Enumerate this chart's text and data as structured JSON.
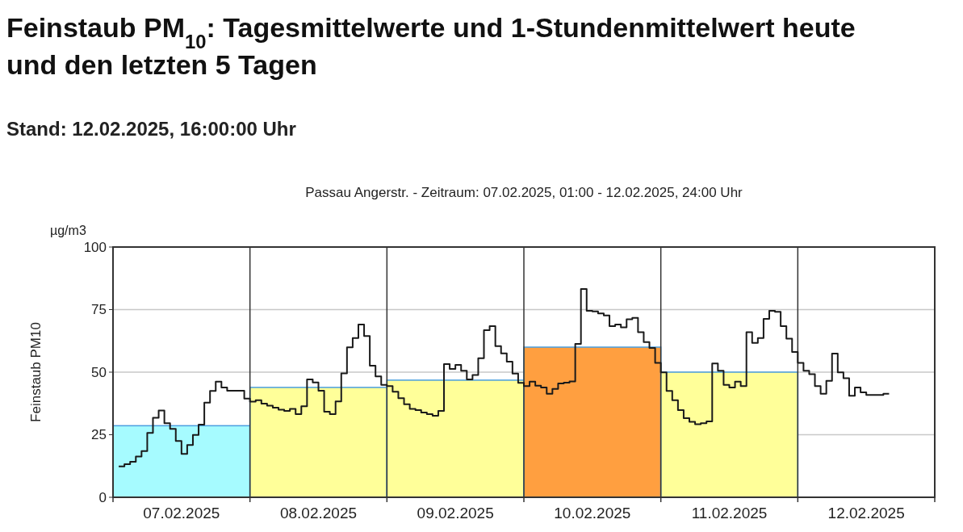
{
  "chart_data": {
    "type": "step",
    "title": "Feinstaub PM$_{10}$: Tagesmittelwerte und 1-Stundenmittelwert heute und den letzten 5 Tagen",
    "subtitle": "Stand: 12.02.2025, 16:00:00 Uhr",
    "annotations": [
      "Passau Angerstr. - Zeitraum: 07.02.2025, 01:00 - 12.02.2025, 24:00 Uhr",
      "µg/m3"
    ],
    "ylabel": "Feinstaub PM10",
    "xlim": [
      "2025-02-07T00:00",
      "2025-02-13T00:00"
    ],
    "ylim": [
      0,
      100
    ],
    "xticks": [
      {
        "value": "2025-02-07T00:00",
        "label": null
      },
      {
        "value": "2025-02-07T12:00",
        "label": "07.02.2025"
      },
      {
        "value": "2025-02-08T00:00",
        "label": null
      },
      {
        "value": "2025-02-08T12:00",
        "label": "08.02.2025"
      },
      {
        "value": "2025-02-09T00:00",
        "label": null
      },
      {
        "value": "2025-02-09T12:00",
        "label": "09.02.2025"
      },
      {
        "value": "2025-02-10T00:00",
        "label": null
      },
      {
        "value": "2025-02-10T12:00",
        "label": "10.02.2025"
      },
      {
        "value": "2025-02-11T00:00",
        "label": null
      },
      {
        "value": "2025-02-11T12:00",
        "label": "11.02.2025"
      },
      {
        "value": "2025-02-12T00:00",
        "label": null
      },
      {
        "value": "2025-02-12T12:00",
        "label": "12.02.2025"
      },
      {
        "value": "2025-02-13T00:00",
        "label": null
      }
    ],
    "yticks": [
      0,
      25,
      50,
      75,
      100
    ],
    "grid": "y",
    "ref_lines": [
      {
        "axis": "x",
        "value": "2025-02-08T00:00",
        "color": "#333333"
      },
      {
        "axis": "x",
        "value": "2025-02-09T00:00",
        "color": "#333333"
      },
      {
        "axis": "x",
        "value": "2025-02-10T00:00",
        "color": "#333333"
      },
      {
        "axis": "x",
        "value": "2025-02-11T00:00",
        "color": "#333333"
      },
      {
        "axis": "x",
        "value": "2025-02-12T00:00",
        "color": "#333333"
      }
    ],
    "series": [
      {
        "type": "bar",
        "x": [
          "2025-02-07T12:00",
          "2025-02-08T12:00",
          "2025-02-09T12:00",
          "2025-02-10T12:00",
          "2025-02-11T12:00"
        ],
        "values": [
          28.6,
          43.9,
          46.8,
          60,
          50
        ],
        "colors": [
          "#a6fbff",
          "#ffff99",
          "#ffff99",
          "#ff9f40",
          "#ffff99"
        ],
        "color": "#4a9ee0"
      },
      {
        "color": "#1a1a1a",
        "x": [
          "2025-02-07T01:00",
          "2025-02-07T02:00",
          "2025-02-07T03:00",
          "2025-02-07T04:00",
          "2025-02-07T05:00",
          "2025-02-07T06:00",
          "2025-02-07T07:00",
          "2025-02-07T08:00",
          "2025-02-07T09:00",
          "2025-02-07T10:00",
          "2025-02-07T11:00",
          "2025-02-07T12:00",
          "2025-02-07T13:00",
          "2025-02-07T14:00",
          "2025-02-07T15:00",
          "2025-02-07T16:00",
          "2025-02-07T17:00",
          "2025-02-07T18:00",
          "2025-02-07T19:00",
          "2025-02-07T20:00",
          "2025-02-07T21:00",
          "2025-02-07T22:00",
          "2025-02-07T23:00",
          "2025-02-08T00:00",
          "2025-02-08T01:00",
          "2025-02-08T02:00",
          "2025-02-08T03:00",
          "2025-02-08T04:00",
          "2025-02-08T05:00",
          "2025-02-08T06:00",
          "2025-02-08T07:00",
          "2025-02-08T08:00",
          "2025-02-08T09:00",
          "2025-02-08T10:00",
          "2025-02-08T11:00",
          "2025-02-08T12:00",
          "2025-02-08T13:00",
          "2025-02-08T14:00",
          "2025-02-08T15:00",
          "2025-02-08T16:00",
          "2025-02-08T17:00",
          "2025-02-08T18:00",
          "2025-02-08T19:00",
          "2025-02-08T20:00",
          "2025-02-08T21:00",
          "2025-02-08T22:00",
          "2025-02-08T23:00",
          "2025-02-09T00:00",
          "2025-02-09T01:00",
          "2025-02-09T02:00",
          "2025-02-09T03:00",
          "2025-02-09T04:00",
          "2025-02-09T05:00",
          "2025-02-09T06:00",
          "2025-02-09T07:00",
          "2025-02-09T08:00",
          "2025-02-09T09:00",
          "2025-02-09T10:00",
          "2025-02-09T11:00",
          "2025-02-09T12:00",
          "2025-02-09T13:00",
          "2025-02-09T14:00",
          "2025-02-09T15:00",
          "2025-02-09T16:00",
          "2025-02-09T17:00",
          "2025-02-09T18:00",
          "2025-02-09T19:00",
          "2025-02-09T20:00",
          "2025-02-09T21:00",
          "2025-02-09T22:00",
          "2025-02-09T23:00",
          "2025-02-10T00:00",
          "2025-02-10T01:00",
          "2025-02-10T02:00",
          "2025-02-10T03:00",
          "2025-02-10T04:00",
          "2025-02-10T05:00",
          "2025-02-10T06:00",
          "2025-02-10T07:00",
          "2025-02-10T08:00",
          "2025-02-10T09:00",
          "2025-02-10T10:00",
          "2025-02-10T11:00",
          "2025-02-10T12:00",
          "2025-02-10T13:00",
          "2025-02-10T14:00",
          "2025-02-10T15:00",
          "2025-02-10T16:00",
          "2025-02-10T17:00",
          "2025-02-10T18:00",
          "2025-02-10T19:00",
          "2025-02-10T20:00",
          "2025-02-10T21:00",
          "2025-02-10T22:00",
          "2025-02-10T23:00",
          "2025-02-11T00:00",
          "2025-02-11T01:00",
          "2025-02-11T02:00",
          "2025-02-11T03:00",
          "2025-02-11T04:00",
          "2025-02-11T05:00",
          "2025-02-11T06:00",
          "2025-02-11T07:00",
          "2025-02-11T08:00",
          "2025-02-11T09:00",
          "2025-02-11T10:00",
          "2025-02-11T11:00",
          "2025-02-11T12:00",
          "2025-02-11T13:00",
          "2025-02-11T14:00",
          "2025-02-11T15:00",
          "2025-02-11T16:00",
          "2025-02-11T17:00",
          "2025-02-11T18:00",
          "2025-02-11T19:00",
          "2025-02-11T20:00",
          "2025-02-11T21:00",
          "2025-02-11T22:00",
          "2025-02-11T23:00",
          "2025-02-12T00:00",
          "2025-02-12T01:00",
          "2025-02-12T02:00",
          "2025-02-12T03:00",
          "2025-02-12T04:00",
          "2025-02-12T05:00",
          "2025-02-12T06:00",
          "2025-02-12T07:00",
          "2025-02-12T08:00",
          "2025-02-12T09:00",
          "2025-02-12T10:00",
          "2025-02-12T11:00",
          "2025-02-12T12:00",
          "2025-02-12T13:00",
          "2025-02-12T14:00",
          "2025-02-12T15:00",
          "2025-02-12T16:00"
        ],
        "values": [
          12.3,
          12.3,
          13.2,
          14.2,
          16.3,
          18.5,
          25.7,
          31.8,
          34.7,
          29.6,
          27.3,
          22.5,
          17.3,
          20.9,
          24.9,
          29,
          37.8,
          42.5,
          46.2,
          43.9,
          42.6,
          42.6,
          42.6,
          39.4,
          38.2,
          38.8,
          37.4,
          36.6,
          35.8,
          35,
          34.5,
          35.3,
          33.2,
          36.4,
          47.1,
          45.9,
          42.6,
          34.2,
          33.2,
          38.3,
          49.5,
          59.9,
          63.6,
          69,
          64.4,
          52.6,
          48.3,
          44.9,
          44.4,
          42.2,
          39.6,
          37.2,
          35.3,
          34.8,
          33.9,
          33.2,
          32.6,
          34.5,
          53.2,
          51.3,
          52.9,
          50.6,
          47.1,
          48.9,
          55.6,
          66.8,
          68.4,
          60.4,
          57.5,
          54.2,
          49.4,
          45.7,
          44.4,
          46.2,
          44.6,
          43.9,
          41.4,
          43.3,
          45.5,
          45.8,
          46.3,
          61.3,
          83.2,
          74.5,
          74.3,
          73.5,
          72.7,
          68.4,
          69,
          67.9,
          71.1,
          71.7,
          66,
          62,
          59.7,
          53.7,
          49.9,
          42.5,
          38.8,
          34.8,
          31.6,
          30.2,
          29.2,
          29.6,
          30.3,
          53.5,
          50.6,
          44.9,
          43.9,
          46.2,
          44.4,
          66,
          61.7,
          63.6,
          71.3,
          74.5,
          74.1,
          68.4,
          63.4,
          58.1,
          53.7,
          50.6,
          49.2,
          44.4,
          41.4,
          46.5,
          57.4,
          49.9,
          47.6,
          40.6,
          43.9,
          41.9,
          40.9,
          40.9,
          40.9,
          41.4
        ]
      }
    ]
  }
}
